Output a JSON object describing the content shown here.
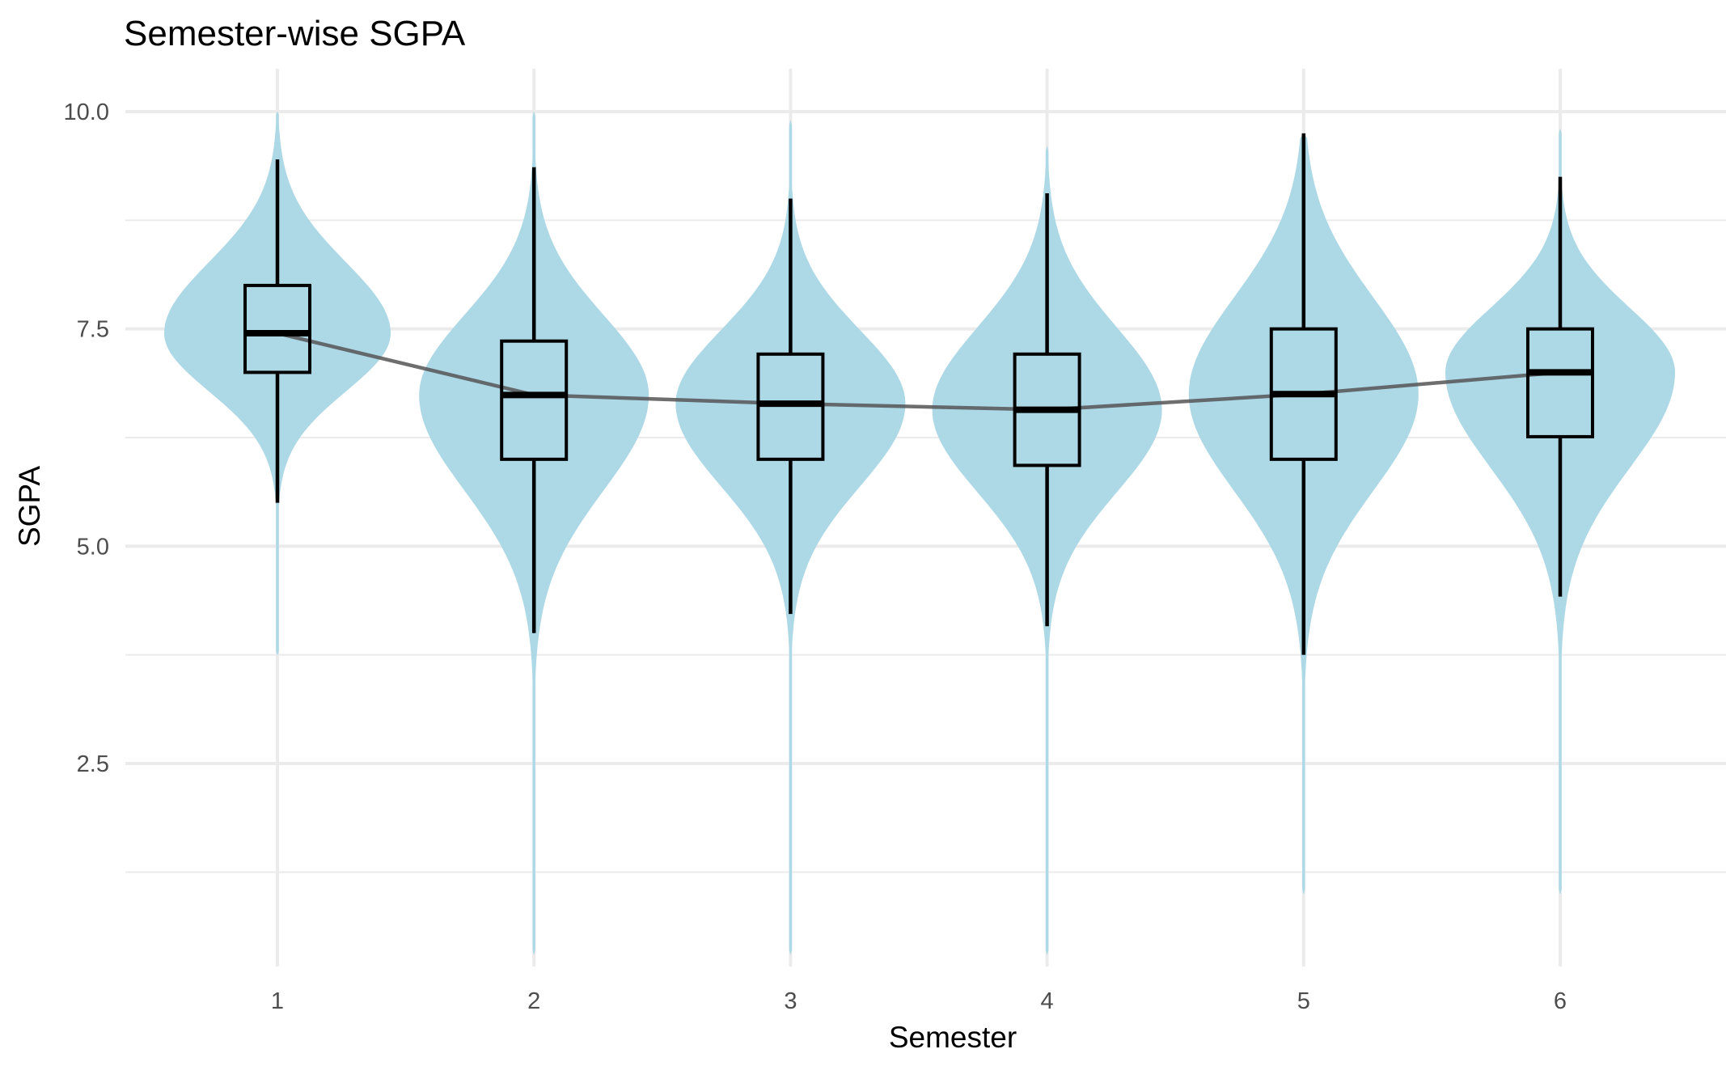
{
  "chart_data": {
    "type": "violin",
    "title": "Semester-wise SGPA",
    "xlabel": "Semester",
    "ylabel": "SGPA",
    "categories": [
      "1",
      "2",
      "3",
      "4",
      "5",
      "6"
    ],
    "ylim": [
      0.15,
      10.35
    ],
    "yticks": [
      {
        "value": 2.5,
        "label": "2.5"
      },
      {
        "value": 5.0,
        "label": "5.0"
      },
      {
        "value": 7.5,
        "label": "7.5"
      },
      {
        "value": 10.0,
        "label": "10.0"
      }
    ],
    "minor_yticks": [
      1.25,
      3.75,
      6.25,
      8.75
    ],
    "grid": true,
    "legend": "none",
    "violin_color": "#add8e6",
    "box_color": "#000000",
    "trend_line_color": "#555555",
    "boxes": [
      {
        "semester": "1",
        "lower_whisker": 5.5,
        "q1": 7.0,
        "median": 7.45,
        "q3": 8.0,
        "upper_whisker": 9.45,
        "violin_min": 3.75,
        "violin_max": 10.0
      },
      {
        "semester": "2",
        "lower_whisker": 4.0,
        "q1": 6.0,
        "median": 6.74,
        "q3": 7.36,
        "upper_whisker": 9.36,
        "violin_min": 0.3,
        "violin_max": 10.0
      },
      {
        "semester": "3",
        "lower_whisker": 4.22,
        "q1": 6.0,
        "median": 6.64,
        "q3": 7.21,
        "upper_whisker": 9.0,
        "violin_min": 0.3,
        "violin_max": 9.9
      },
      {
        "semester": "4",
        "lower_whisker": 4.08,
        "q1": 5.93,
        "median": 6.57,
        "q3": 7.21,
        "upper_whisker": 9.06,
        "violin_min": 0.3,
        "violin_max": 9.6
      },
      {
        "semester": "5",
        "lower_whisker": 3.75,
        "q1": 6.0,
        "median": 6.75,
        "q3": 7.5,
        "upper_whisker": 9.75,
        "violin_min": 1.0,
        "violin_max": 9.75
      },
      {
        "semester": "6",
        "lower_whisker": 4.42,
        "q1": 6.26,
        "median": 7.0,
        "q3": 7.5,
        "upper_whisker": 9.25,
        "violin_min": 1.0,
        "violin_max": 9.8
      }
    ],
    "trend_line": {
      "name": "median trend",
      "x": [
        "1",
        "2",
        "3",
        "4",
        "5",
        "6"
      ],
      "y": [
        7.45,
        6.74,
        6.64,
        6.57,
        6.75,
        7.0
      ]
    }
  }
}
